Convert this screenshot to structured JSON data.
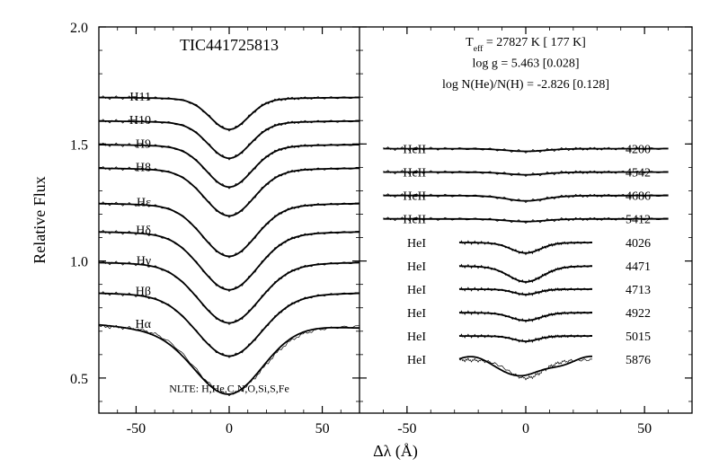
{
  "title": "TIC441725813",
  "nlte_label": "NLTE: H,He,C,N,O,Si,S,Fe",
  "axis_labels": {
    "x": "Δλ (Å)",
    "y": "Relative Flux"
  },
  "xlim": [
    -70,
    70
  ],
  "xticks_major": [
    -50,
    0,
    50
  ],
  "ylim": [
    0.35,
    2.0
  ],
  "yticks_major": [
    0.5,
    1.0,
    1.5,
    2.0
  ],
  "fit_params": [
    "T_eff = 27827 K [ 177 K]",
    "log g = 5.463 [0.028]",
    "log N(He)/N(H) = -2.826 [0.128]"
  ],
  "left_panel": {
    "lines": [
      {
        "label": "H11",
        "offset": 1.7,
        "depth": 0.12,
        "width": 10
      },
      {
        "label": "H10",
        "offset": 1.6,
        "depth": 0.14,
        "width": 11
      },
      {
        "label": "H9",
        "offset": 1.5,
        "depth": 0.16,
        "width": 12
      },
      {
        "label": "H8",
        "offset": 1.4,
        "depth": 0.18,
        "width": 13
      },
      {
        "label": "Hε",
        "offset": 1.25,
        "depth": 0.2,
        "width": 14
      },
      {
        "label": "Hδ",
        "offset": 1.13,
        "depth": 0.22,
        "width": 15
      },
      {
        "label": "Hγ",
        "offset": 1.0,
        "depth": 0.23,
        "width": 16
      },
      {
        "label": "Hβ",
        "offset": 0.87,
        "depth": 0.24,
        "width": 17
      },
      {
        "label": "Hα",
        "offset": 0.73,
        "depth": 0.26,
        "width": 18,
        "wingdip": true
      }
    ]
  },
  "right_panel": {
    "lines": [
      {
        "label": "HeII",
        "wl": "4200",
        "offset": 1.48,
        "depth": 0.01,
        "width": 8,
        "extent": 60
      },
      {
        "label": "HeII",
        "wl": "4542",
        "offset": 1.38,
        "depth": 0.01,
        "width": 8,
        "extent": 60
      },
      {
        "label": "HeII",
        "wl": "4686",
        "offset": 1.28,
        "depth": 0.02,
        "width": 8,
        "extent": 60
      },
      {
        "label": "HeII",
        "wl": "5412",
        "offset": 1.18,
        "depth": 0.01,
        "width": 8,
        "extent": 60
      },
      {
        "label": "HeI",
        "wl": "4026",
        "offset": 1.08,
        "depth": 0.04,
        "width": 6,
        "extent": 28
      },
      {
        "label": "HeI",
        "wl": "4471",
        "offset": 0.98,
        "depth": 0.06,
        "width": 7,
        "extent": 28
      },
      {
        "label": "HeI",
        "wl": "4713",
        "offset": 0.88,
        "depth": 0.02,
        "width": 5,
        "extent": 28
      },
      {
        "label": "HeI",
        "wl": "4922",
        "offset": 0.78,
        "depth": 0.03,
        "width": 6,
        "extent": 28
      },
      {
        "label": "HeI",
        "wl": "5015",
        "offset": 0.68,
        "depth": 0.02,
        "width": 5,
        "extent": 28
      },
      {
        "label": "HeI",
        "wl": "5876",
        "offset": 0.58,
        "depth": 0.07,
        "width": 7,
        "extent": 28,
        "wiggle": true
      }
    ]
  },
  "colors": {
    "bg": "#ffffff",
    "axis": "#000000",
    "line_thin": "#000000",
    "line_heavy": "#000000"
  },
  "fontsize": {
    "title": 18,
    "label": 18,
    "tick": 16,
    "line_label": 14,
    "nlte": 12,
    "fit": 14
  }
}
